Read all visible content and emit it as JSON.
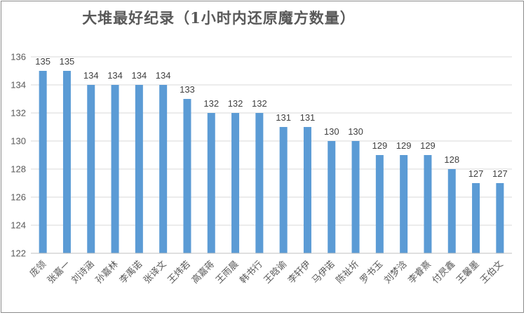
{
  "chart_data": {
    "type": "bar",
    "title": "大堆最好纪录（1小时内还原魔方数量）",
    "xlabel": "",
    "ylabel": "",
    "ylim": [
      122,
      136
    ],
    "ytick_step": 2,
    "grid": true,
    "legend": "none",
    "bar_color": "#5b9bd5",
    "grid_color": "#d9d9d9",
    "categories": [
      "庞领",
      "张嘉一",
      "刘诗涵",
      "孙嘉林",
      "李禹诺",
      "张译文",
      "王炜若",
      "高嘉蒋",
      "王雨晨",
      "韩书行",
      "王晗谕",
      "李轩伊",
      "马伊诺",
      "陈祉圻",
      "罗书玉",
      "刘梦浛",
      "李睿熹",
      "付昃鑫",
      "王馨墨",
      "王伯文"
    ],
    "values": [
      135,
      135,
      134,
      134,
      134,
      134,
      133,
      132,
      132,
      132,
      131,
      131,
      130,
      130,
      129,
      129,
      129,
      128,
      127,
      127
    ]
  }
}
